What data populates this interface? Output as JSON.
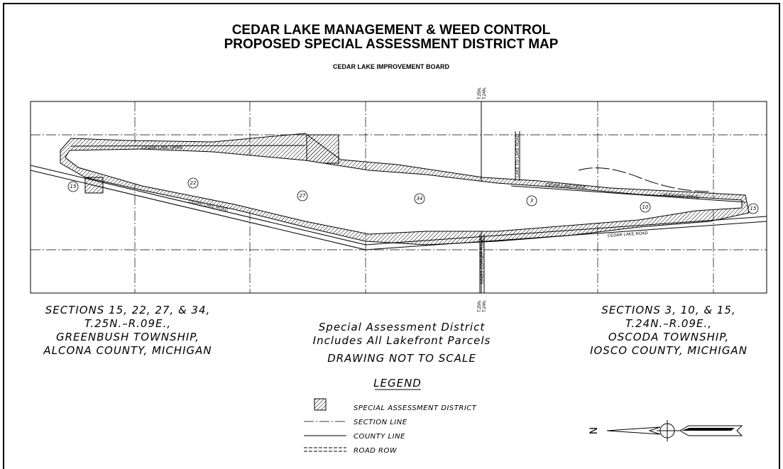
{
  "header": {
    "title": [
      "CEDAR LAKE MANAGEMENT & WEED CONTROL",
      "PROPOSED SPECIAL ASSESSMENT DISTRICT MAP"
    ],
    "subtitle": "CEDAR LAKE IMPROVEMENT BOARD"
  },
  "map": {
    "sections": [
      "15",
      "22",
      "27",
      "34",
      "3",
      "10",
      "15"
    ],
    "roads": {
      "cedar_lake_drive_west": "CEDAR LAKE DRIVE",
      "cedar_lake_drive_east": "CEDAR LAKE DRIVE",
      "cedar_lake_road_west": "CEDAR LAKE ROAD",
      "cedar_lake_road_east": "CEDAR LAKE ROAD",
      "lake_to_lake": "LAKE TO LAKE ROAD",
      "lakewood": "LAKEWOOD DRIVE",
      "kings_corner": "KINGS CORNER ROAD"
    },
    "township_top": [
      "T.25N.",
      "T.24N."
    ],
    "township_bottom": [
      "T.25N.",
      "T.24N."
    ],
    "north": "N"
  },
  "left_block": [
    "SECTIONS 15, 22, 27, & 34,",
    "T.25N.–R.09E.,",
    "GREENBUSH TOWNSHIP,",
    "ALCONA COUNTY, MICHIGAN"
  ],
  "center_block": [
    "Special Assessment District",
    "Includes All Lakefront Parcels"
  ],
  "note": "DRAWING NOT TO SCALE",
  "right_block": [
    "SECTIONS 3, 10, & 15,",
    "T.24N.–R.09E.,",
    "OSCODA TOWNSHIP,",
    "IOSCO COUNTY, MICHIGAN"
  ],
  "legend": {
    "title": "LEGEND",
    "items": [
      "SPECIAL ASSESSMENT DISTRICT",
      "SECTION LINE",
      "COUNTY LINE",
      "ROAD ROW"
    ]
  }
}
